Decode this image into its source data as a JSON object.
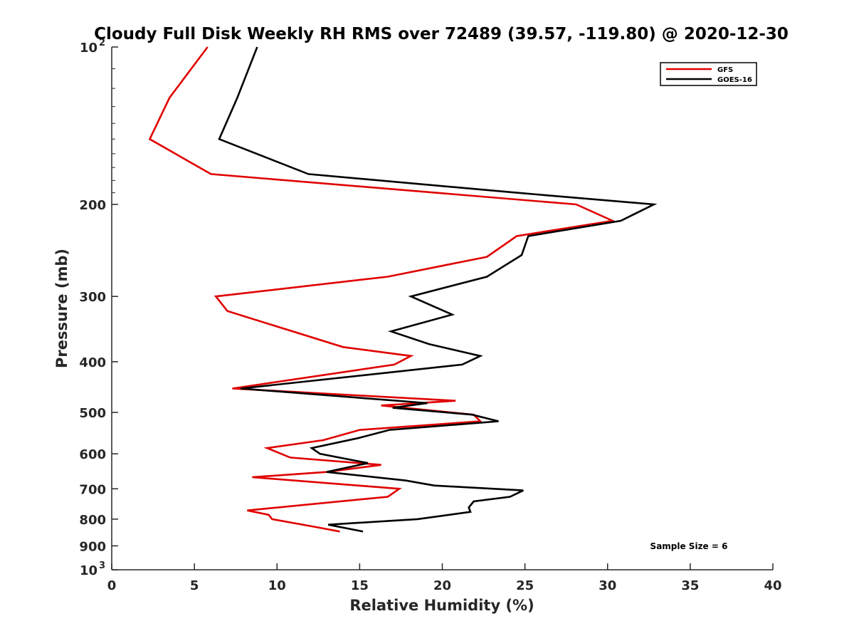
{
  "chart_data": {
    "type": "line",
    "title": "Cloudy Full Disk Weekly RH RMS over 72489 (39.57, -119.80) @ 2020-12-30",
    "xlabel": "Relative Humidity (%)",
    "ylabel": "Pressure (mb)",
    "xlim": [
      0,
      40
    ],
    "ylim": [
      100,
      1000
    ],
    "y_scale": "log",
    "y_reversed": true,
    "x_ticks": [
      "0",
      "5",
      "10",
      "15",
      "20",
      "25",
      "30",
      "35",
      "40"
    ],
    "y_ticks": [
      {
        "value": 100,
        "label": "10",
        "sup": "2"
      },
      {
        "value": 200,
        "label": "200",
        "sup": ""
      },
      {
        "value": 300,
        "label": "300",
        "sup": ""
      },
      {
        "value": 400,
        "label": "400",
        "sup": ""
      },
      {
        "value": 500,
        "label": "500",
        "sup": ""
      },
      {
        "value": 600,
        "label": "600",
        "sup": ""
      },
      {
        "value": 700,
        "label": "700",
        "sup": ""
      },
      {
        "value": 800,
        "label": "800",
        "sup": ""
      },
      {
        "value": 900,
        "label": "900",
        "sup": ""
      },
      {
        "value": 1000,
        "label": "10",
        "sup": "3"
      }
    ],
    "legend_position": "top-right",
    "annotation": "Sample Size = 6",
    "series": [
      {
        "name": "GFS",
        "color": "#e00000",
        "points": [
          [
            5.8,
            100
          ],
          [
            3.5,
            125
          ],
          [
            2.3,
            150
          ],
          [
            6.0,
            175
          ],
          [
            28.1,
            200
          ],
          [
            30.3,
            215
          ],
          [
            24.5,
            230
          ],
          [
            22.7,
            252
          ],
          [
            16.7,
            275
          ],
          [
            6.3,
            300
          ],
          [
            7.0,
            320
          ],
          [
            14.0,
            375
          ],
          [
            18.1,
            390
          ],
          [
            17.1,
            405
          ],
          [
            7.3,
            450
          ],
          [
            20.8,
            475
          ],
          [
            16.3,
            485
          ],
          [
            21.9,
            505
          ],
          [
            22.3,
            520
          ],
          [
            15.0,
            540
          ],
          [
            12.8,
            565
          ],
          [
            9.4,
            585
          ],
          [
            10.8,
            610
          ],
          [
            16.3,
            630
          ],
          [
            13.0,
            650
          ],
          [
            8.5,
            665
          ],
          [
            17.4,
            700
          ],
          [
            16.7,
            725
          ],
          [
            8.2,
            770
          ],
          [
            9.5,
            785
          ],
          [
            9.7,
            800
          ],
          [
            12.5,
            830
          ],
          [
            13.8,
            845
          ]
        ]
      },
      {
        "name": "GOES-16",
        "color": "#000000",
        "points": [
          [
            8.8,
            100
          ],
          [
            7.6,
            125
          ],
          [
            6.5,
            150
          ],
          [
            11.9,
            175
          ],
          [
            24.5,
            190
          ],
          [
            32.8,
            200
          ],
          [
            30.8,
            215
          ],
          [
            25.2,
            230
          ],
          [
            24.8,
            250
          ],
          [
            22.7,
            275
          ],
          [
            18.1,
            300
          ],
          [
            20.6,
            325
          ],
          [
            16.9,
            350
          ],
          [
            19.2,
            370
          ],
          [
            22.3,
            390
          ],
          [
            21.2,
            405
          ],
          [
            7.8,
            450
          ],
          [
            19.1,
            480
          ],
          [
            17.0,
            490
          ],
          [
            21.8,
            505
          ],
          [
            23.4,
            520
          ],
          [
            16.8,
            540
          ],
          [
            14.9,
            560
          ],
          [
            12.1,
            585
          ],
          [
            12.6,
            600
          ],
          [
            15.5,
            625
          ],
          [
            13.0,
            650
          ],
          [
            17.8,
            675
          ],
          [
            19.5,
            690
          ],
          [
            24.9,
            705
          ],
          [
            24.1,
            725
          ],
          [
            21.9,
            740
          ],
          [
            21.6,
            760
          ],
          [
            21.7,
            775
          ],
          [
            18.5,
            800
          ],
          [
            13.1,
            820
          ],
          [
            15.2,
            845
          ]
        ]
      }
    ]
  }
}
